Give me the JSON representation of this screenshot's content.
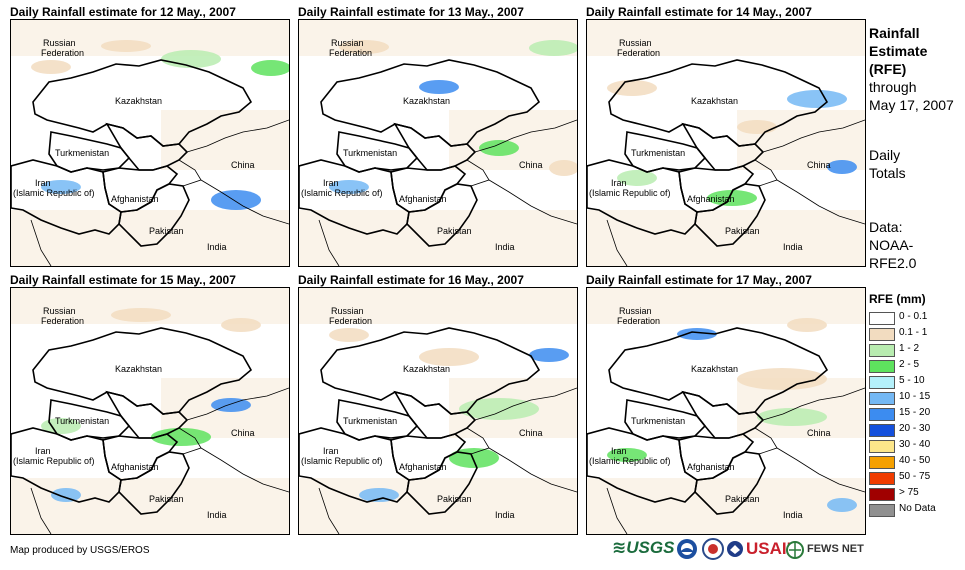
{
  "panels": [
    {
      "title": "Daily Rainfall estimate for 12 May., 2007"
    },
    {
      "title": "Daily Rainfall estimate for 13 May., 2007"
    },
    {
      "title": "Daily Rainfall estimate for 14 May., 2007"
    },
    {
      "title": "Daily Rainfall estimate for 15 May., 2007"
    },
    {
      "title": "Daily Rainfall estimate for 16 May., 2007"
    },
    {
      "title": "Daily Rainfall estimate for 17 May., 2007"
    }
  ],
  "map_labels": {
    "russia_1": "Russian",
    "russia_2": "Federation",
    "kazakhstan": "Kazakhstan",
    "turkmenistan": "Turkmenistan",
    "iran_1": "Iran",
    "iran_2": "(Islamic Republic of)",
    "afghanistan": "Afghanistan",
    "pakistan": "Pakistan",
    "india": "India",
    "china": "China"
  },
  "side": {
    "head_1": "Rainfall",
    "head_2": "Estimate",
    "head_3": "(RFE)",
    "through": "through",
    "date": "May 17, 2007",
    "totals_1": "Daily",
    "totals_2": "Totals",
    "data_1": "Data:",
    "data_2": "NOAA-",
    "data_3": "RFE2.0"
  },
  "legend": {
    "title": "RFE (mm)",
    "items": [
      {
        "label": "0 - 0.1",
        "color": "#ffffff"
      },
      {
        "label": "0.1 - 1",
        "color": "#f2dcc0"
      },
      {
        "label": "1 - 2",
        "color": "#b8ecb0"
      },
      {
        "label": "2 - 5",
        "color": "#5ee25e"
      },
      {
        "label": "5 - 10",
        "color": "#b4f0fa"
      },
      {
        "label": "10 - 15",
        "color": "#74b8f4"
      },
      {
        "label": "15 - 20",
        "color": "#3c8cf0"
      },
      {
        "label": "20 - 30",
        "color": "#1450dc"
      },
      {
        "label": "30 - 40",
        "color": "#fce68a"
      },
      {
        "label": "40 - 50",
        "color": "#f5a000"
      },
      {
        "label": "50 - 75",
        "color": "#f03c00"
      },
      {
        "label": "> 75",
        "color": "#a00000"
      },
      {
        "label": "No Data",
        "color": "#909090"
      }
    ]
  },
  "footer": "Map produced by USGS/EROS",
  "logos": {
    "usgs": "USGS",
    "usaid": "USAID",
    "fewsnet": "FEWS NET"
  }
}
